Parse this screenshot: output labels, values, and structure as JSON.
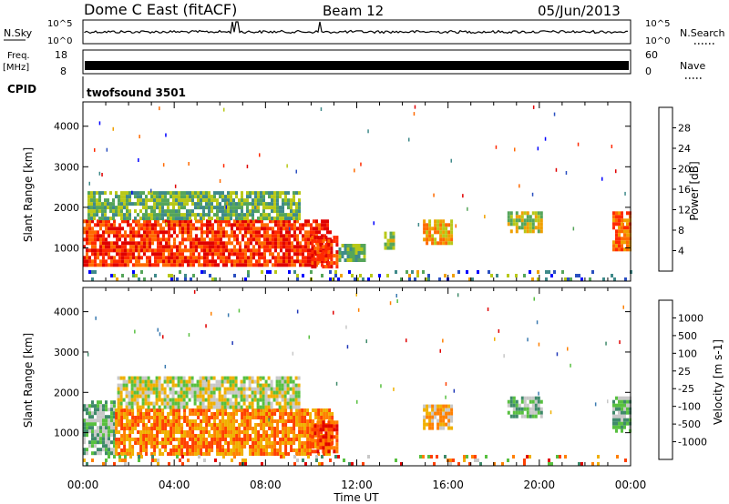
{
  "header": {
    "station": "Dome C East (fitACF)",
    "beam": "Beam 12",
    "date": "05/Jun/2013"
  },
  "small_panels": {
    "nsky_label": "N.Sky",
    "nsearch_label": "N.Search",
    "nsky_ticks_left": [
      "10^5",
      "10^0"
    ],
    "nsky_ticks_right": [
      "10^5",
      "10^0"
    ],
    "freq_label": "Freq.",
    "freq_unit": "[MHz]",
    "freq_ticks": [
      "18",
      "8"
    ],
    "nave_label": "Nave",
    "nave_ticks": [
      "60",
      "0"
    ],
    "cpid_label": "CPID",
    "cpid_value": "twofsound 3501"
  },
  "x_axis": {
    "label": "Time UT",
    "ticks": [
      "00:00",
      "04:00",
      "08:00",
      "12:00",
      "16:00",
      "20:00",
      "00:00"
    ]
  },
  "chart_data": [
    {
      "type": "heatmap",
      "panel": "power",
      "xlabel": "Time UT",
      "ylabel": "Slant Range [km]",
      "x_range_hours": [
        0,
        24
      ],
      "ylim": [
        180,
        4600
      ],
      "y_ticks": [
        "1000",
        "2000",
        "3000",
        "4000"
      ],
      "colorbar": {
        "label": "Power [dB]",
        "ticks": [
          "28",
          "24",
          "20",
          "16",
          "12",
          "8",
          "4"
        ],
        "range": [
          0,
          32
        ],
        "colors": [
          "#0000ff",
          "#2a4fc0",
          "#3f8a8a",
          "#55a55a",
          "#b8c818",
          "#f0a000",
          "#ff6a00",
          "#ff2a00",
          "#e00000"
        ]
      },
      "echo_regions": [
        {
          "t": [
            0.0,
            10.9
          ],
          "range": [
            600,
            1700
          ],
          "value_db": 26
        },
        {
          "t": [
            0.2,
            9.5
          ],
          "range": [
            1700,
            2400
          ],
          "value_db": 12
        },
        {
          "t": [
            10.0,
            11.1
          ],
          "range": [
            550,
            1300
          ],
          "value_db": 28
        },
        {
          "t": [
            11.2,
            12.3
          ],
          "range": [
            700,
            1100
          ],
          "value_db": 10
        },
        {
          "t": [
            13.2,
            13.6
          ],
          "range": [
            1000,
            1400
          ],
          "value_db": 14
        },
        {
          "t": [
            14.9,
            16.2
          ],
          "range": [
            1100,
            1700
          ],
          "value_db": 18
        },
        {
          "t": [
            18.6,
            20.1
          ],
          "range": [
            1400,
            1900
          ],
          "value_db": 16
        },
        {
          "t": [
            23.2,
            24.0
          ],
          "range": [
            1000,
            1900
          ],
          "value_db": 24
        },
        {
          "t": [
            0.0,
            24.0
          ],
          "range": [
            200,
            450
          ],
          "value_db": 8
        }
      ]
    },
    {
      "type": "heatmap",
      "panel": "velocity",
      "xlabel": "Time UT",
      "ylabel": "Slant Range [km]",
      "x_range_hours": [
        0,
        24
      ],
      "ylim": [
        180,
        4600
      ],
      "y_ticks": [
        "1000",
        "2000",
        "3000",
        "4000"
      ],
      "colorbar": {
        "label": "Velocity [m s-1]",
        "ticks": [
          "1000",
          "500",
          "100",
          "25",
          "-25",
          "-100",
          "-500",
          "-1000"
        ],
        "colors": [
          "#2038b8",
          "#3a7ab0",
          "#3f8a6a",
          "#58c040",
          "#c8c8c8",
          "#f0b000",
          "#ff8000",
          "#ff4000",
          "#e00000"
        ]
      },
      "echo_regions": [
        {
          "t": [
            0.0,
            1.4
          ],
          "range": [
            500,
            1800
          ],
          "value_label": "100"
        },
        {
          "t": [
            1.4,
            10.9
          ],
          "range": [
            450,
            1600
          ],
          "value_label": "-100"
        },
        {
          "t": [
            1.5,
            9.5
          ],
          "range": [
            1600,
            2400
          ],
          "value_label": "25"
        },
        {
          "t": [
            10.0,
            11.1
          ],
          "range": [
            500,
            1300
          ],
          "value_label": "-500"
        },
        {
          "t": [
            14.9,
            16.2
          ],
          "range": [
            1100,
            1700
          ],
          "value_label": "-25"
        },
        {
          "t": [
            18.6,
            20.1
          ],
          "range": [
            1400,
            1900
          ],
          "value_label": "100"
        },
        {
          "t": [
            23.2,
            24.0
          ],
          "range": [
            1000,
            1900
          ],
          "value_label": "100"
        },
        {
          "t": [
            0.0,
            24.0
          ],
          "range": [
            200,
            450
          ],
          "value_label": "-25"
        }
      ]
    }
  ]
}
